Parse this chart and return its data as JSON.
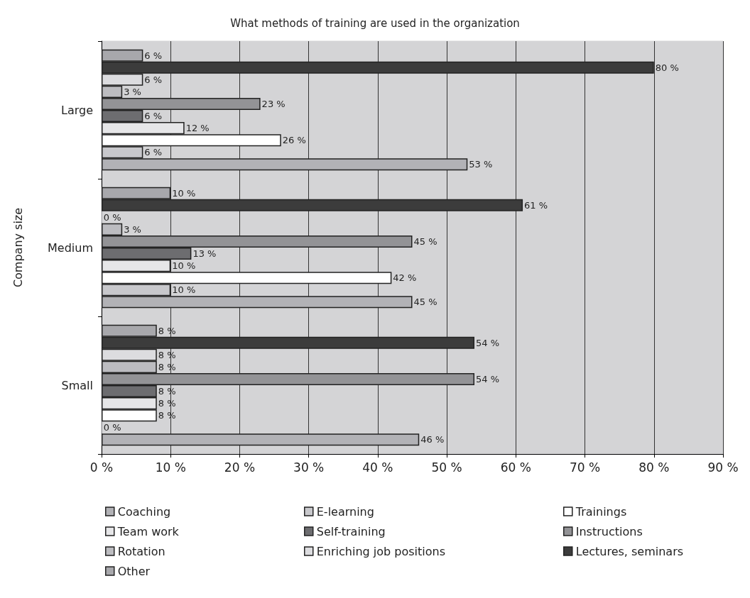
{
  "chart_data": {
    "type": "bar",
    "orientation": "horizontal",
    "title": "What methods of training are used in the organization",
    "ylabel": "Company size",
    "categories": [
      "Large",
      "Medium",
      "Small"
    ],
    "series": [
      {
        "name": "Other",
        "color": "#a8a8ac",
        "values": [
          6,
          10,
          8
        ],
        "value_labels": [
          "6 %",
          "10 %",
          "8 %"
        ]
      },
      {
        "name": "Lectures, seminars",
        "color": "#3c3c3c",
        "values": [
          80,
          61,
          54
        ],
        "value_labels": [
          "80 %",
          "61 %",
          "54 %"
        ]
      },
      {
        "name": "Enriching job positions",
        "color": "#dcdcdf",
        "values": [
          6,
          0,
          8
        ],
        "value_labels": [
          "6 %",
          "0 %",
          "8 %"
        ]
      },
      {
        "name": "Rotation",
        "color": "#bcbcc0",
        "values": [
          3,
          3,
          8
        ],
        "value_labels": [
          "3 %",
          "3 %",
          "8 %"
        ]
      },
      {
        "name": "Instructions",
        "color": "#939396",
        "values": [
          23,
          45,
          54
        ],
        "value_labels": [
          "23 %",
          "45 %",
          "54 %"
        ]
      },
      {
        "name": "Self-training",
        "color": "#6d6d70",
        "values": [
          6,
          13,
          8
        ],
        "value_labels": [
          "6 %",
          "13 %",
          "8 %"
        ]
      },
      {
        "name": "Team work",
        "color": "#e6e6e8",
        "values": [
          12,
          10,
          8
        ],
        "value_labels": [
          "12 %",
          "10 %",
          "8 %"
        ]
      },
      {
        "name": "Trainings",
        "color": "#ffffff",
        "values": [
          26,
          42,
          8
        ],
        "value_labels": [
          "26 %",
          "42 %",
          "8 %"
        ]
      },
      {
        "name": "E-learning",
        "color": "#c8c8cc",
        "values": [
          6,
          10,
          0
        ],
        "value_labels": [
          "6 %",
          "10 %",
          "0 %"
        ]
      },
      {
        "name": "Coaching",
        "color": "#b2b2b6",
        "values": [
          53,
          45,
          46
        ],
        "value_labels": [
          "53 %",
          "45 %",
          "46 %"
        ]
      }
    ],
    "xlim": [
      0,
      90
    ],
    "xticks": [
      {
        "value": 0,
        "label": "0 %"
      },
      {
        "value": 10,
        "label": "10 %"
      },
      {
        "value": 20,
        "label": "20 %"
      },
      {
        "value": 30,
        "label": "30 %"
      },
      {
        "value": 40,
        "label": "40 %"
      },
      {
        "value": 50,
        "label": "50 %"
      },
      {
        "value": 60,
        "label": "60 %"
      },
      {
        "value": 70,
        "label": "70 %"
      },
      {
        "value": 80,
        "label": "80 %"
      },
      {
        "value": 90,
        "label": "90 %"
      }
    ],
    "grid": "x",
    "legend": "bottom"
  }
}
